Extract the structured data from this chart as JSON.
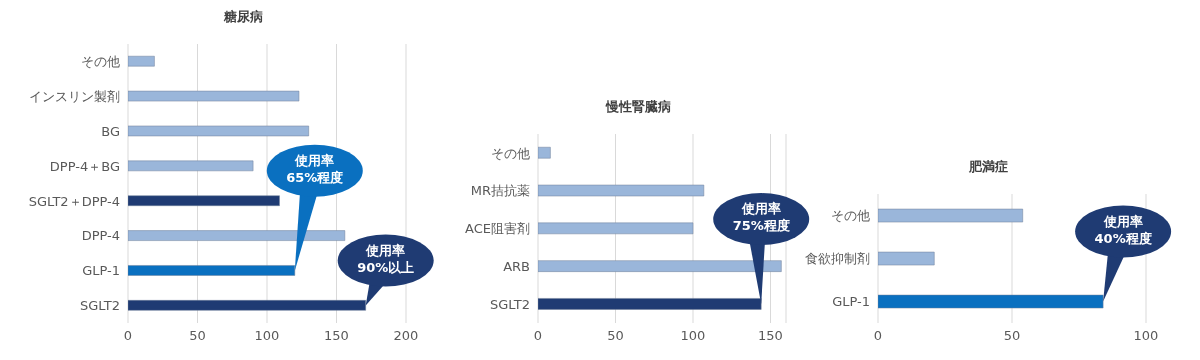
{
  "chart_data": [
    {
      "type": "bar",
      "orientation": "horizontal",
      "title": "糖尿病",
      "categories": [
        "その他",
        "インスリン製剤",
        "BG",
        "DPP-4＋BG",
        "SGLT2＋DPP-4",
        "DPP-4",
        "GLP-1",
        "SGLT2"
      ],
      "values": [
        19,
        123,
        130,
        90,
        109,
        156,
        120,
        171
      ],
      "colors": [
        "#9ab6da",
        "#9ab6da",
        "#9ab6da",
        "#9ab6da",
        "#1f3b73",
        "#9ab6da",
        "#0a70c0",
        "#1f3b73"
      ],
      "xlim": [
        0,
        200
      ],
      "xticks": [
        0,
        50,
        100,
        150,
        200
      ],
      "grid": "x",
      "annotations": [
        {
          "text": "使用率\n65%程度",
          "x": 120,
          "y": "GLP-1"
        },
        {
          "text": "使用率\n90%以上",
          "x": 171,
          "y": "SGLT2"
        }
      ]
    },
    {
      "type": "bar",
      "orientation": "horizontal",
      "title": "慢性腎臓病",
      "categories": [
        "その他",
        "MR拮抗薬",
        "ACE阻害剤",
        "ARB",
        "SGLT2"
      ],
      "values": [
        8,
        107,
        100,
        157,
        144
      ],
      "colors": [
        "#9ab6da",
        "#9ab6da",
        "#9ab6da",
        "#9ab6da",
        "#1f3b73"
      ],
      "xlim": [
        0,
        160
      ],
      "xticks": [
        0,
        50,
        100,
        150
      ],
      "grid": "x",
      "annotations": [
        {
          "text": "使用率\n75%程度",
          "x": 144,
          "y": "SGLT2"
        }
      ]
    },
    {
      "type": "bar",
      "orientation": "horizontal",
      "title": "肥満症",
      "categories": [
        "その他",
        "食欲抑制剤",
        "GLP-1"
      ],
      "values": [
        54,
        21,
        84
      ],
      "colors": [
        "#9ab6da",
        "#9ab6da",
        "#0a70c0"
      ],
      "xlim": [
        0,
        100
      ],
      "xticks": [
        0,
        50,
        100
      ],
      "grid": "x",
      "annotations": [
        {
          "text": "使用率\n40%程度",
          "x": 84,
          "y": "GLP-1"
        }
      ]
    }
  ]
}
